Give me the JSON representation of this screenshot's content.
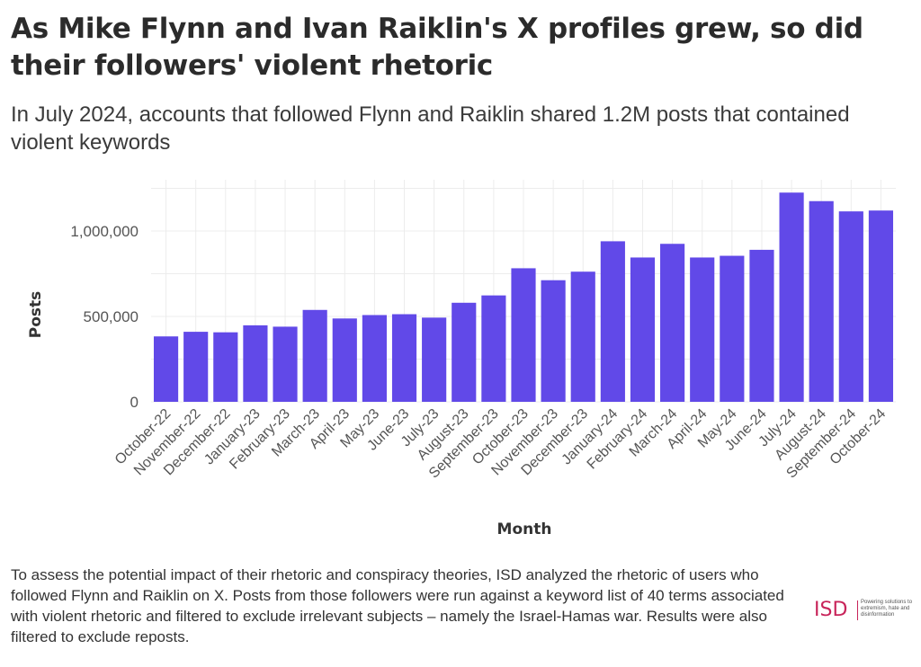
{
  "header": {
    "title": "As Mike Flynn and Ivan Raiklin's X profiles grew, so did their followers' violent rhetoric",
    "subtitle": "In July 2024, accounts that followed Flynn and Raiklin shared 1.2M posts that contained violent keywords"
  },
  "footer": {
    "note": "To assess the potential impact of their rhetoric and conspiracy theories, ISD analyzed the rhetoric of users who followed Flynn and Raiklin on X. Posts from those followers were run against a keyword list of 40 terms associated with violent rhetoric and filtered to exclude irrelevant subjects – namely the Israel-Hamas war. Results were also filtered to exclude reposts.",
    "logo_text": "ISD",
    "logo_tagline": "Powering solutions to extremism, hate and disinformation"
  },
  "chart_data": {
    "type": "bar",
    "xlabel": "Month",
    "ylabel": "Posts",
    "ylim": [
      0,
      1300000
    ],
    "yticks": [
      0,
      500000,
      1000000
    ],
    "ytick_labels": [
      "0",
      "500,000",
      "1,000,000"
    ],
    "grid": true,
    "bar_color": "#6149e8",
    "categories": [
      "October-22",
      "November-22",
      "December-22",
      "January-23",
      "February-23",
      "March-23",
      "April-23",
      "May-23",
      "June-23",
      "July-23",
      "August-23",
      "September-23",
      "October-23",
      "November-23",
      "December-23",
      "January-24",
      "February-24",
      "March-24",
      "April-24",
      "May-24",
      "June-24",
      "July-24",
      "August-24",
      "September-24",
      "October-24"
    ],
    "values": [
      383000,
      410000,
      407000,
      448000,
      440000,
      538000,
      488000,
      508000,
      513000,
      493000,
      580000,
      623000,
      782000,
      712000,
      762000,
      940000,
      845000,
      925000,
      845000,
      855000,
      890000,
      1225000,
      1175000,
      1115000,
      1120000
    ]
  }
}
